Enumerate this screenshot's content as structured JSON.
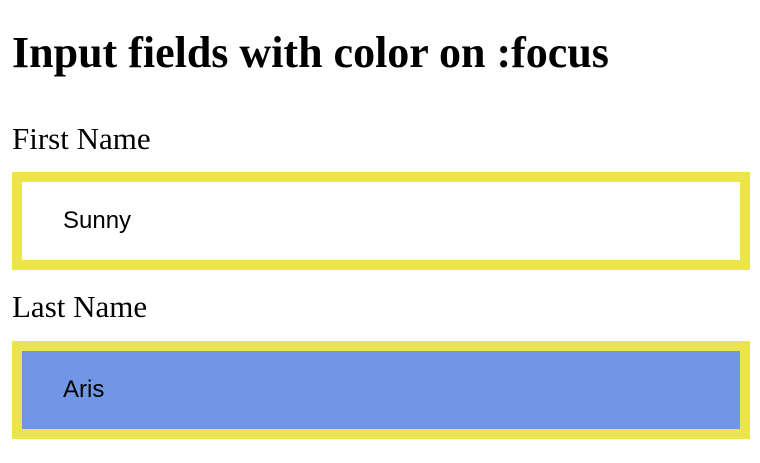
{
  "page": {
    "title": "Input fields with color on :focus"
  },
  "form": {
    "first_name": {
      "label": "First Name",
      "value": "Sunny"
    },
    "last_name": {
      "label": "Last Name",
      "value": "Aris"
    }
  },
  "colors": {
    "field_border": "#ebe44e",
    "focused_background": "#7096e5",
    "default_background": "#ffffff"
  }
}
